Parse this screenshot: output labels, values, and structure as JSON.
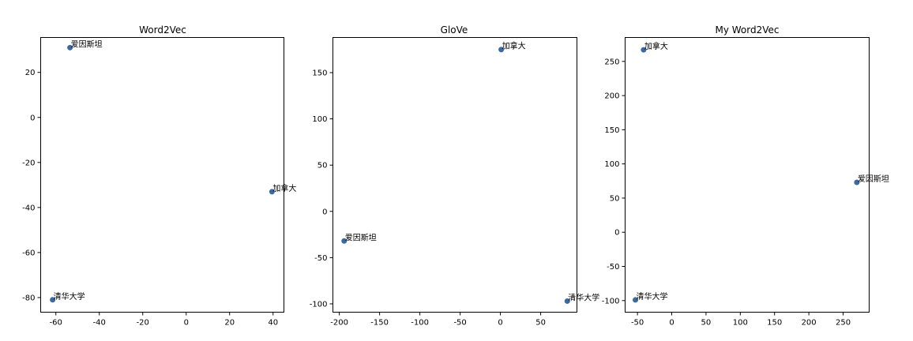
{
  "chart_data": [
    {
      "type": "scatter",
      "title": "Word2Vec",
      "xlim": [
        -67,
        45
      ],
      "ylim": [
        -86.5,
        35.5
      ],
      "xticks": [
        -60,
        -40,
        -20,
        0,
        20,
        40
      ],
      "yticks": [
        -80,
        -60,
        -40,
        -20,
        0,
        20
      ],
      "points": [
        {
          "label": "爱因斯坦",
          "x": -53.5,
          "y": 31
        },
        {
          "label": "加拿大",
          "x": 39.5,
          "y": -33
        },
        {
          "label": "清华大学",
          "x": -61.5,
          "y": -81
        }
      ]
    },
    {
      "type": "scatter",
      "title": "GloVe",
      "xlim": [
        -208,
        95
      ],
      "ylim": [
        -109,
        188
      ],
      "xticks": [
        -200,
        -150,
        -100,
        -50,
        0,
        50
      ],
      "yticks": [
        -100,
        -50,
        0,
        50,
        100,
        150
      ],
      "points": [
        {
          "label": "加拿大",
          "x": 1,
          "y": 175
        },
        {
          "label": "爱因斯坦",
          "x": -194,
          "y": -32
        },
        {
          "label": "清华大学",
          "x": 83,
          "y": -97
        }
      ]
    },
    {
      "type": "scatter",
      "title": "My Word2Vec",
      "xlim": [
        -68,
        288
      ],
      "ylim": [
        -117,
        285
      ],
      "xticks": [
        -50,
        0,
        50,
        100,
        150,
        200,
        250
      ],
      "yticks": [
        -100,
        -50,
        0,
        50,
        100,
        150,
        200,
        250
      ],
      "points": [
        {
          "label": "加拿大",
          "x": -41,
          "y": 267
        },
        {
          "label": "爱因斯坦",
          "x": 270,
          "y": 73
        },
        {
          "label": "清华大学",
          "x": -53,
          "y": -99
        }
      ]
    }
  ],
  "style": {
    "point_color": "#3b6aa0",
    "axis_color": "#000000",
    "background": "#ffffff"
  }
}
